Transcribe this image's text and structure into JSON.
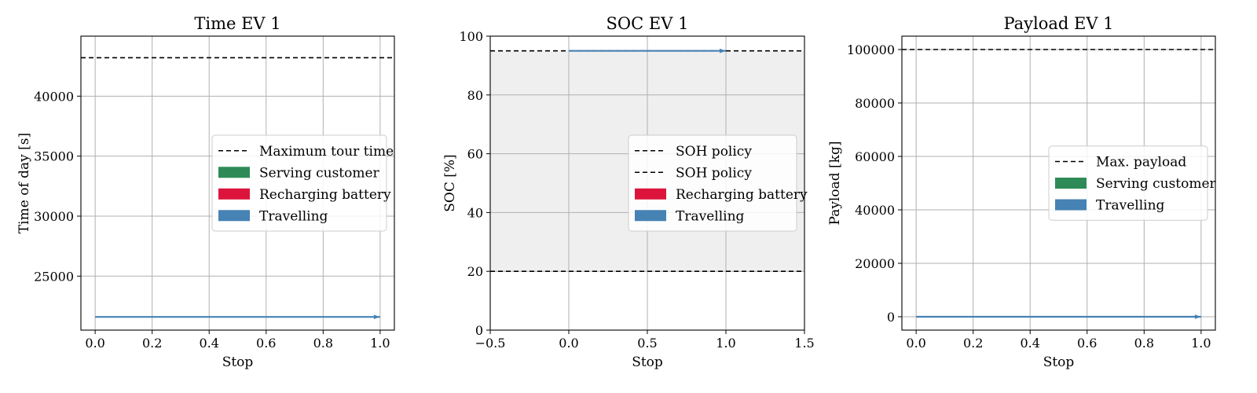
{
  "chart_data": [
    {
      "type": "line",
      "title": "Time EV 1",
      "xlabel": "Stop",
      "ylabel": "Time of day [s]",
      "xlim": [
        -0.05,
        1.05
      ],
      "ylim": [
        20500,
        45000
      ],
      "xticks": [
        0.0,
        0.2,
        0.4,
        0.6,
        0.8,
        1.0
      ],
      "xtick_labels": [
        "0.0",
        "0.2",
        "0.4",
        "0.6",
        "0.8",
        "1.0"
      ],
      "yticks": [
        25000,
        30000,
        35000,
        40000
      ],
      "ytick_labels": [
        "25000",
        "30000",
        "35000",
        "40000"
      ],
      "grid": true,
      "shade": null,
      "hlines": [
        {
          "y": 43200,
          "label": "Maximum tour time"
        }
      ],
      "arrows": [
        {
          "x0": 0,
          "y0": 21600,
          "x1": 1,
          "y1": 21600,
          "color": "#4682b4"
        }
      ],
      "legend": {
        "placement": "center-right",
        "entries": [
          {
            "label": "Maximum tour time",
            "kind": "line",
            "color": "#000000"
          },
          {
            "label": "Serving customer",
            "kind": "patch",
            "color": "#2e8b57"
          },
          {
            "label": "Recharging battery",
            "kind": "patch",
            "color": "#dc143c"
          },
          {
            "label": "Travelling",
            "kind": "patch",
            "color": "#4682b4"
          }
        ]
      }
    },
    {
      "type": "line",
      "title": "SOC EV 1",
      "xlabel": "Stop",
      "ylabel": "SOC [%]",
      "xlim": [
        -0.5,
        1.5
      ],
      "ylim": [
        0,
        100
      ],
      "xticks": [
        -0.5,
        0.0,
        0.5,
        1.0,
        1.5
      ],
      "xtick_labels": [
        "−0.5",
        "0.0",
        "0.5",
        "1.0",
        "1.5"
      ],
      "yticks": [
        0,
        20,
        40,
        60,
        80,
        100
      ],
      "ytick_labels": [
        "0",
        "20",
        "40",
        "60",
        "80",
        "100"
      ],
      "grid": true,
      "shade": {
        "y0": 20,
        "y1": 95,
        "color": "#efefef"
      },
      "hlines": [
        {
          "y": 95,
          "label": "SOH policy"
        },
        {
          "y": 20,
          "label": "SOH policy"
        }
      ],
      "arrows": [
        {
          "x0": 0,
          "y0": 95,
          "x1": 1,
          "y1": 95,
          "color": "#4682b4"
        }
      ],
      "legend": {
        "placement": "center-right",
        "entries": [
          {
            "label": "SOH policy",
            "kind": "line",
            "color": "#000000"
          },
          {
            "label": "SOH policy",
            "kind": "line",
            "color": "#000000"
          },
          {
            "label": "Recharging battery",
            "kind": "patch",
            "color": "#dc143c"
          },
          {
            "label": "Travelling",
            "kind": "patch",
            "color": "#4682b4"
          }
        ]
      }
    },
    {
      "type": "line",
      "title": "Payload EV 1",
      "xlabel": "Stop",
      "ylabel": "Payload [kg]",
      "xlim": [
        -0.05,
        1.05
      ],
      "ylim": [
        -5000,
        105000
      ],
      "xticks": [
        0.0,
        0.2,
        0.4,
        0.6,
        0.8,
        1.0
      ],
      "xtick_labels": [
        "0.0",
        "0.2",
        "0.4",
        "0.6",
        "0.8",
        "1.0"
      ],
      "yticks": [
        0,
        20000,
        40000,
        60000,
        80000,
        100000
      ],
      "ytick_labels": [
        "0",
        "20000",
        "40000",
        "60000",
        "80000",
        "100000"
      ],
      "grid": true,
      "shade": null,
      "hlines": [
        {
          "y": 100000,
          "label": "Max. payload"
        }
      ],
      "arrows": [
        {
          "x0": 0,
          "y0": 0,
          "x1": 1,
          "y1": 0,
          "color": "#4682b4"
        }
      ],
      "legend": {
        "placement": "center-right",
        "entries": [
          {
            "label": "Max. payload",
            "kind": "line",
            "color": "#000000"
          },
          {
            "label": "Serving customer",
            "kind": "patch",
            "color": "#2e8b57"
          },
          {
            "label": "Travelling",
            "kind": "patch",
            "color": "#4682b4"
          }
        ]
      }
    }
  ]
}
